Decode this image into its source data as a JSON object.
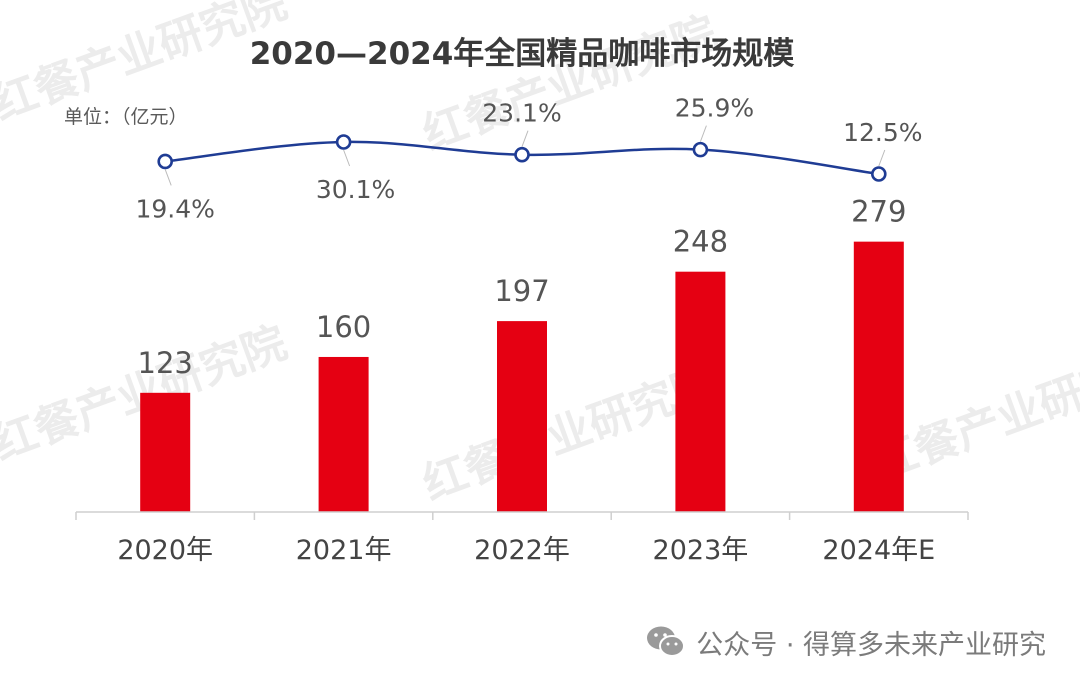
{
  "chart_data": {
    "type": "bar",
    "title": "2020—2024年全国精品咖啡市场规模",
    "unit_label": "单位：（亿元）",
    "categories": [
      "2020年",
      "2021年",
      "2022年",
      "2023年",
      "2024年E"
    ],
    "values": [
      123,
      160,
      197,
      248,
      279
    ],
    "value_labels": [
      "123",
      "160",
      "197",
      "248",
      "279"
    ],
    "growth_rates": [
      19.4,
      30.1,
      23.1,
      25.9,
      12.5
    ],
    "growth_labels": [
      "19.4%",
      "30.1%",
      "23.1%",
      "25.9%",
      "12.5%"
    ],
    "colors": {
      "bar": "#e50012",
      "line": "#1f3c94",
      "marker_fill": "#ffffff",
      "axis": "#cfcfcf"
    },
    "grid": false,
    "legend": "none"
  },
  "watermark": {
    "text": "红餐产业研究院"
  },
  "footer": {
    "icon": "wechat-icon",
    "text": "公众号 · 得算多未来产业研究"
  }
}
